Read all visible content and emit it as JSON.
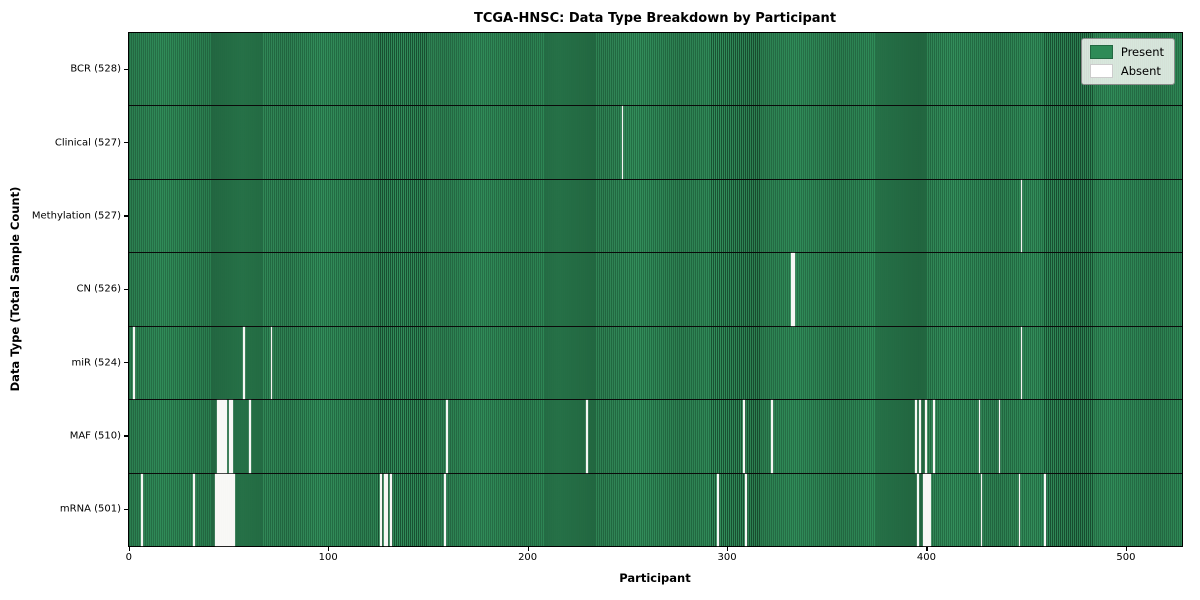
{
  "title": "TCGA-HNSC: Data Type Breakdown by Participant",
  "colors": {
    "present": "#2e8b57",
    "absent": "#ffffff",
    "bar_edge": "#17492c",
    "row_separator": "#0a0a0a",
    "legend_border": "#8a8a8a"
  },
  "legend": {
    "present_label": "Present",
    "absent_label": "Absent"
  },
  "chart_data": {
    "type": "heatmap",
    "title": "TCGA-HNSC: Data Type Breakdown by Participant",
    "xlabel": "Participant",
    "ylabel": "Data Type (Total Sample Count)",
    "n_participants": 528,
    "x_ticks": [
      0,
      100,
      200,
      300,
      400,
      500
    ],
    "grid": false,
    "legend_position": "upper right",
    "legend": [
      {
        "label": "Present",
        "color": "#2e8b57"
      },
      {
        "label": "Absent",
        "color": "#ffffff"
      }
    ],
    "rows": [
      {
        "label": "BCR (528)",
        "name": "BCR",
        "total": 528,
        "absent_participants": []
      },
      {
        "label": "Clinical (527)",
        "name": "Clinical",
        "total": 527,
        "absent_participants": [
          247
        ]
      },
      {
        "label": "Methylation (527)",
        "name": "Methylation",
        "total": 527,
        "absent_participants": [
          447
        ]
      },
      {
        "label": "CN (526)",
        "name": "CN",
        "total": 526,
        "absent_participants": [
          332,
          333
        ]
      },
      {
        "label": "miR (524)",
        "name": "miR",
        "total": 524,
        "absent_participants": [
          2,
          57,
          71,
          447
        ]
      },
      {
        "label": "MAF (510)",
        "name": "MAF",
        "total": 510,
        "absent_participants": [
          44,
          45,
          46,
          47,
          48,
          50,
          51,
          60,
          159,
          229,
          308,
          322,
          394,
          396,
          399,
          403,
          426,
          436
        ]
      },
      {
        "label": "mRNA (501)",
        "name": "mRNA",
        "total": 501,
        "absent_participants": [
          6,
          32,
          43,
          44,
          45,
          46,
          47,
          48,
          49,
          50,
          51,
          52,
          126,
          128,
          129,
          131,
          158,
          295,
          309,
          395,
          398,
          399,
          400,
          401,
          427,
          446,
          459
        ]
      }
    ]
  }
}
